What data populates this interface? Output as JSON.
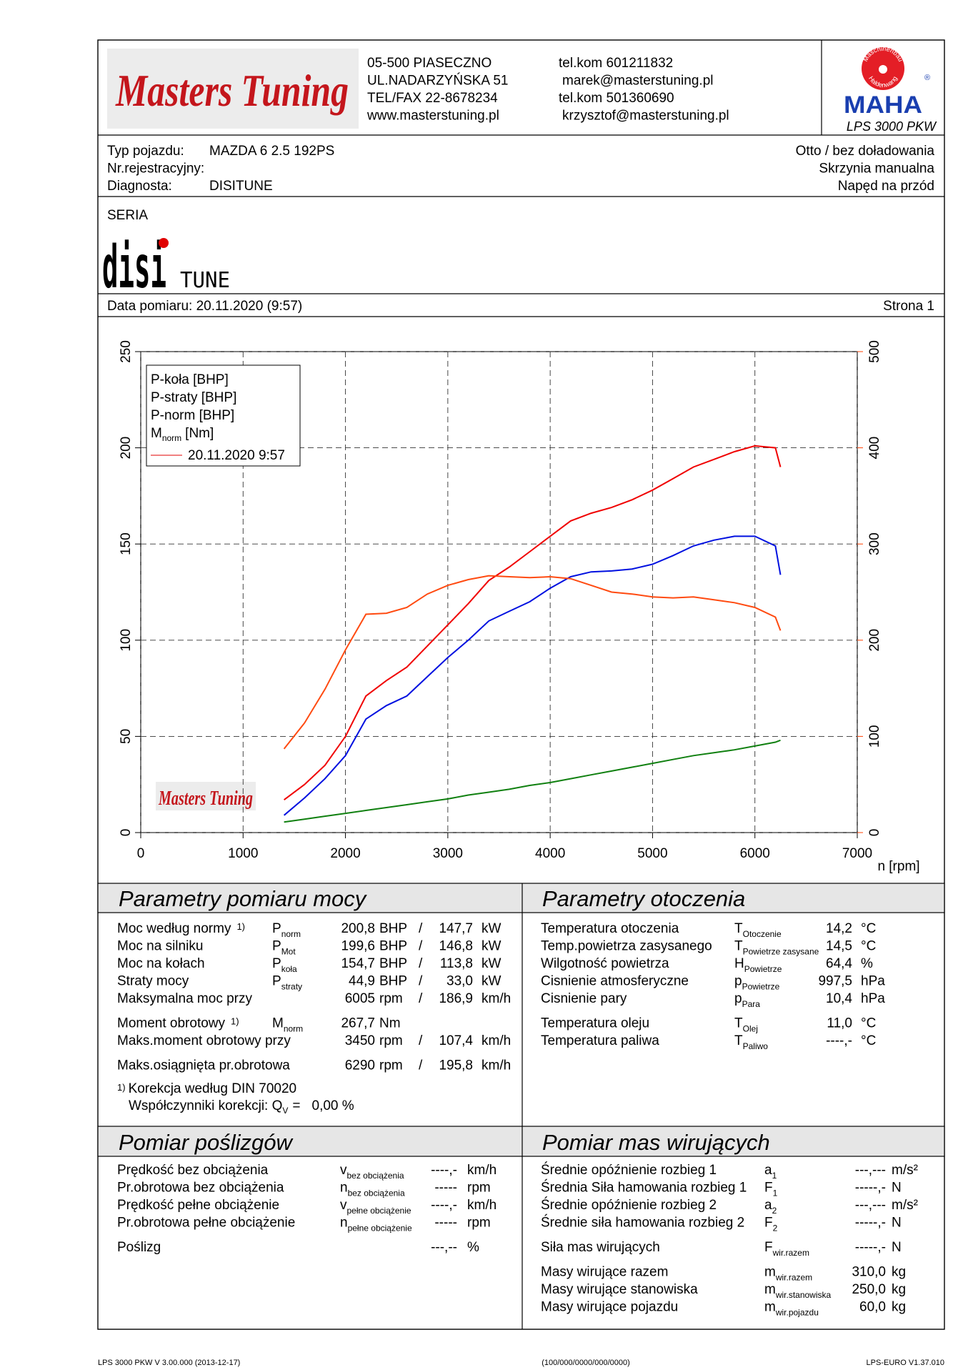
{
  "header": {
    "logo": "Masters Tuning",
    "address": [
      "05-500 PIASECZNO",
      "UL.NADARZYŃSKA 51",
      "TEL/FAX 22-8678234",
      "www.masterstuning.pl"
    ],
    "contacts": [
      "tel.kom 601211832",
      "marek@masterstuning.pl",
      "tel.kom 501360690",
      "krzysztof@masterstuning.pl"
    ],
    "maha": {
      "ring_top": "Maschinenbau",
      "ring_bottom": "Haldenwang",
      "brand": "MAHA",
      "registered": "®",
      "model": "LPS 3000 PKW"
    }
  },
  "vehicle": {
    "left": [
      {
        "label": "Typ pojazdu:",
        "value": "MAZDA 6 2.5 192PS"
      },
      {
        "label": "Nr.rejestracyjny:"
      },
      {
        "label": "Diagnosta:",
        "value": "DISITUNE"
      }
    ],
    "right": [
      "Otto / bez doładowania",
      "Skrzynia manualna",
      "Napęd na przód"
    ]
  },
  "series_section": {
    "label": "SERIA",
    "logo_main": "disi",
    "logo_sub": "TUNE"
  },
  "measurement": {
    "date": "Data pomiaru: 20.11.2020 (9:57)",
    "page": "Strona 1"
  },
  "chart_data": {
    "type": "line",
    "xlabel": "n [rpm]",
    "xlim": [
      0,
      7000
    ],
    "xticks": [
      0,
      1000,
      2000,
      3000,
      4000,
      5000,
      6000,
      7000
    ],
    "ylim": [
      0,
      250
    ],
    "yticks": [
      0,
      50,
      100,
      150,
      200,
      250
    ],
    "y2lim": [
      0,
      500
    ],
    "y2ticks": [
      0,
      100,
      200,
      300,
      400,
      500
    ],
    "y2color": "#ff4000",
    "grid": true,
    "legend": "upper left",
    "run_label": "20.11.2020 9:57",
    "run_color": "#e00000",
    "x": [
      1400,
      1600,
      1800,
      2000,
      2200,
      2400,
      2600,
      2800,
      3000,
      3200,
      3400,
      3600,
      3800,
      4000,
      4200,
      4400,
      4600,
      4800,
      5000,
      5200,
      5400,
      5600,
      5800,
      6000,
      6200,
      6250
    ],
    "series": [
      {
        "name": "P-koła [BHP]",
        "color": "#0010e0",
        "values": [
          9,
          18,
          28,
          40,
          59,
          66,
          71,
          81,
          91,
          100,
          110,
          115,
          120,
          127,
          133,
          135.5,
          136,
          137,
          139.5,
          144,
          149,
          152,
          154,
          154,
          149,
          134
        ]
      },
      {
        "name": "P-straty [BHP]",
        "color": "#108010",
        "values": [
          5.5,
          7,
          8.5,
          10,
          11.5,
          13,
          14.5,
          16,
          17.5,
          19.5,
          21,
          22.5,
          24.5,
          26,
          28,
          30,
          32,
          34,
          36,
          38,
          40,
          41.5,
          43,
          45,
          47,
          48
        ]
      },
      {
        "name": "P-norm [BHP]",
        "color": "#f00000",
        "values": [
          17,
          25,
          35,
          50,
          71,
          79,
          86,
          97,
          108,
          119,
          131,
          138,
          146,
          154,
          162,
          166,
          169,
          173,
          178,
          184,
          190,
          194,
          198,
          201,
          200,
          190
        ]
      },
      {
        "name": "M",
        "name_sub": "norm",
        "unit": "[Nm]",
        "color": "#ff4a10",
        "axis": "y2",
        "values": [
          87,
          114,
          149,
          190,
          227,
          228,
          234,
          248,
          257,
          263,
          267,
          266,
          265,
          266,
          264,
          257,
          250,
          248,
          245,
          244,
          245,
          242,
          239,
          234,
          224,
          210
        ]
      }
    ]
  },
  "power": {
    "title": "Parametry pomiaru mocy",
    "groups": [
      [
        {
          "label": "Moc według normy",
          "note": "1)",
          "sym": "P",
          "sub": "norm",
          "value": "200,8",
          "unit": "BHP",
          "sep": "/",
          "value2": "147,7",
          "unit2": "kW",
          "color": "#e00000"
        },
        {
          "label": "Moc na silniku",
          "sym": "P",
          "sub": "Mot",
          "value": "199,6",
          "unit": "BHP",
          "sep": "/",
          "value2": "146,8",
          "unit2": "kW",
          "color": "#e00000"
        },
        {
          "label": "Moc na kołach",
          "sym": "P",
          "sub": "koła",
          "value": "154,7",
          "unit": "BHP",
          "sep": "/",
          "value2": "113,8",
          "unit2": "kW",
          "color": "#0010e0"
        },
        {
          "label": "Straty mocy",
          "sym": "P",
          "sub": "straty",
          "value": "44,9",
          "unit": "BHP",
          "sep": "/",
          "value2": "33,0",
          "unit2": "kW",
          "color": "#108010"
        },
        {
          "label": "Maksymalna moc przy",
          "value": "6005",
          "unit": "rpm",
          "sep": "/",
          "value2": "186,9",
          "unit2": "km/h",
          "value_color": "#909090"
        }
      ],
      [
        {
          "label": "Moment obrotowy",
          "note": "1)",
          "sym": "M",
          "sub": "norm",
          "value": "267,7",
          "unit": "Nm",
          "color": "#ff4a10"
        },
        {
          "label": "Maks.moment obrotowy przy",
          "value": "3450",
          "unit": "rpm",
          "sep": "/",
          "value2": "107,4",
          "unit2": "km/h",
          "value_color": "#909090"
        }
      ],
      [
        {
          "label": "Maks.osiągnięta pr.obrotowa",
          "value": "6290",
          "unit": "rpm",
          "sep": "/",
          "value2": "195,8",
          "unit2": "km/h",
          "value_color": "#909090"
        }
      ]
    ],
    "footnote": {
      "note": "1)",
      "text": "Korekcja według DIN 70020",
      "corr_label": "Współczynniki korekcji: Q",
      "corr_sub": "V",
      "corr_eq": "=",
      "corr_value": "0,00 %",
      "color": "#e00000"
    }
  },
  "ambient": {
    "title": "Parametry otoczenia",
    "groups": [
      [
        {
          "label": "Temperatura otoczenia",
          "sym": "T",
          "sub": "Otoczenie",
          "value": "14,2",
          "unit": "°C"
        },
        {
          "label": "Temp.powietrza zasysanego",
          "sym": "T",
          "sub": "Powietrze zasysane",
          "value": "14,5",
          "unit": "°C"
        },
        {
          "label": "Wilgotność powietrza",
          "sym": "H",
          "sub": "Powietrze",
          "value": "64,4",
          "unit": "%"
        },
        {
          "label": "Cisnienie atmosferyczne",
          "sym": "p",
          "sub": "Powietrze",
          "value": "997,5",
          "unit": "hPa"
        },
        {
          "label": "Cisnienie pary",
          "sym": "p",
          "sub": "Para",
          "value": "10,4",
          "unit": "hPa"
        }
      ],
      [
        {
          "label": "Temperatura oleju",
          "sym": "T",
          "sub": "Olej",
          "value": "11,0",
          "unit": "°C"
        },
        {
          "label": "Temperatura paliwa",
          "sym": "T",
          "sub": "Paliwo",
          "value": "----,-",
          "unit": "°C"
        }
      ]
    ]
  },
  "slip": {
    "title": "Pomiar poślizgów",
    "groups": [
      [
        {
          "label": "Prędkość bez obciążenia",
          "sym": "v",
          "sub": "bez obciążenia",
          "value": "----,-",
          "unit": "km/h"
        },
        {
          "label": "Pr.obrotowa bez obciążenia",
          "sym": "n",
          "sub": "bez obciążenia",
          "value": "-----",
          "unit": "rpm"
        },
        {
          "label": "Prędkość pełne obciążenie",
          "sym": "v",
          "sub": "pełne obciążenie",
          "value": "----,-",
          "unit": "km/h"
        },
        {
          "label": "Pr.obrotowa pełne obciążenie",
          "sym": "n",
          "sub": "pełne obciążenie",
          "value": "-----",
          "unit": "rpm"
        }
      ],
      [
        {
          "label": "Poślizg",
          "value": "---,--",
          "unit": "%"
        }
      ]
    ]
  },
  "masses": {
    "title": "Pomiar mas wirujących",
    "groups": [
      [
        {
          "label": "Średnie opóźnienie rozbieg 1",
          "sym": "a",
          "sub": "1",
          "value": "---,---",
          "unit": "m/s²"
        },
        {
          "label": "Średnia Siła hamowania rozbieg 1",
          "sym": "F",
          "sub": "1",
          "value": "-----,-",
          "unit": "N"
        },
        {
          "label": "Średnie opóźnienie rozbieg 2",
          "sym": "a",
          "sub": "2",
          "value": "---,---",
          "unit": "m/s²"
        },
        {
          "label": "Średnie siła hamowania rozbieg 2",
          "sym": "F",
          "sub": "2",
          "value": "-----,-",
          "unit": "N"
        }
      ],
      [
        {
          "label": "Siła mas wirujących",
          "sym": "F",
          "sub": "wir.razem",
          "value": "-----,-",
          "unit": "N"
        }
      ],
      [
        {
          "label": "Masy wirujące razem",
          "sym": "m",
          "sub": "wir.razem",
          "value": "310,0",
          "unit": "kg"
        },
        {
          "label": "Masy wirujące stanowiska",
          "sym": "m",
          "sub": "wir.stanowiska",
          "value": "250,0",
          "unit": "kg"
        },
        {
          "label": "Masy wirujące pojazdu",
          "sym": "m",
          "sub": "wir.pojazdu",
          "value": "60,0",
          "unit": "kg"
        }
      ]
    ]
  },
  "footer": {
    "left": "LPS 3000 PKW V 3.00.000 (2013-12-17)",
    "center": "(100/000/0000/000/0000)",
    "right": "LPS-EURO V1.37.010"
  }
}
